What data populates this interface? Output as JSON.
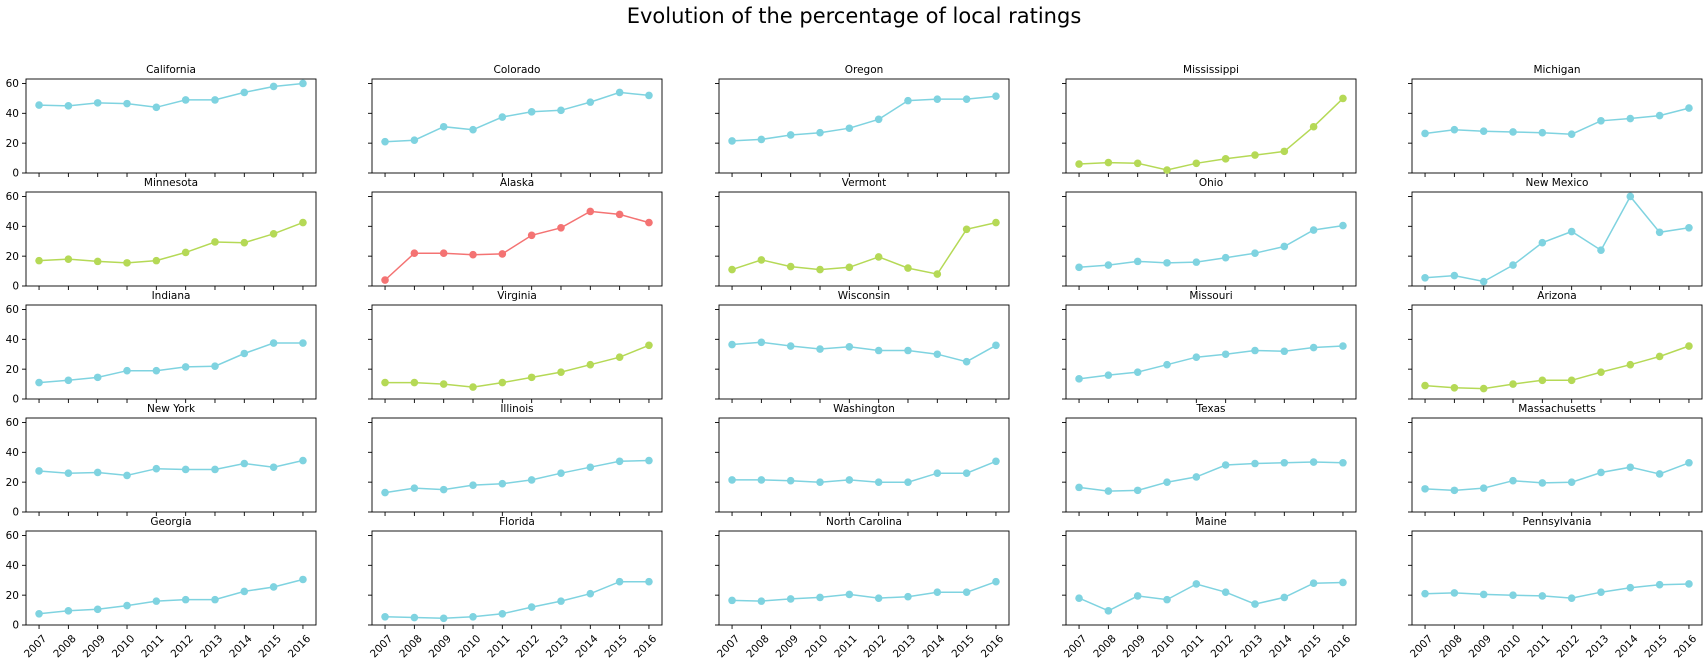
{
  "figure": {
    "title": "Evolution of the percentage of local ratings"
  },
  "chart_data": {
    "type": "line",
    "layout": "small-multiples-5x5",
    "shared_y": true,
    "shared_x": true,
    "ylim": [
      0,
      63
    ],
    "yticks": [
      0,
      20,
      40,
      60
    ],
    "x": [
      2007,
      2008,
      2009,
      2010,
      2011,
      2012,
      2013,
      2014,
      2015,
      2016
    ],
    "xtick_labels": [
      "2007",
      "2008",
      "2009",
      "2010",
      "2011",
      "2012",
      "2013",
      "2014",
      "2015",
      "2016"
    ],
    "grid": false,
    "marker": "circle",
    "colors": {
      "cyan": "#7fd3e0",
      "green": "#b5d956",
      "red": "#f47373"
    },
    "panels": [
      {
        "title": "California",
        "color": "#7fd3e0",
        "values": [
          45.5,
          45,
          47,
          46.5,
          44,
          49,
          49,
          54,
          58,
          60
        ]
      },
      {
        "title": "Colorado",
        "color": "#7fd3e0",
        "values": [
          21,
          22,
          31,
          29,
          37.5,
          41,
          42,
          47.5,
          54,
          52
        ]
      },
      {
        "title": "Oregon",
        "color": "#7fd3e0",
        "values": [
          21.5,
          22.5,
          25.5,
          27,
          30,
          36,
          48.5,
          49.5,
          49.5,
          51.5
        ]
      },
      {
        "title": "Mississippi",
        "color": "#b5d956",
        "values": [
          6,
          7,
          6.5,
          2,
          6.5,
          9.5,
          12,
          14.5,
          31,
          50
        ]
      },
      {
        "title": "Michigan",
        "color": "#7fd3e0",
        "values": [
          26.5,
          29,
          28,
          27.5,
          27,
          26,
          35,
          36.5,
          38.5,
          43.5
        ]
      },
      {
        "title": "Minnesota",
        "color": "#b5d956",
        "values": [
          17,
          18,
          16.5,
          15.5,
          17,
          22.5,
          29.5,
          29,
          35,
          42.5
        ]
      },
      {
        "title": "Alaska",
        "color": "#f47373",
        "values": [
          4,
          22,
          22,
          21,
          21.5,
          34,
          39,
          50,
          48,
          42.5
        ]
      },
      {
        "title": "Vermont",
        "color": "#b5d956",
        "values": [
          11,
          17.5,
          13,
          11,
          12.5,
          19.5,
          12,
          8,
          38,
          42.5
        ]
      },
      {
        "title": "Ohio",
        "color": "#7fd3e0",
        "values": [
          12.5,
          14,
          16.5,
          15.5,
          16,
          19,
          22,
          26.5,
          37.5,
          40.5
        ]
      },
      {
        "title": "New Mexico",
        "color": "#7fd3e0",
        "values": [
          5.5,
          7,
          3,
          14,
          29,
          36.5,
          24,
          60,
          36,
          39
        ]
      },
      {
        "title": "Indiana",
        "color": "#7fd3e0",
        "values": [
          11,
          12.5,
          14.5,
          19,
          19,
          21.5,
          22,
          30.5,
          37.5,
          37.5
        ]
      },
      {
        "title": "Virginia",
        "color": "#b5d956",
        "values": [
          11,
          11,
          10,
          8,
          11,
          14.5,
          18,
          23,
          28,
          36
        ]
      },
      {
        "title": "Wisconsin",
        "color": "#7fd3e0",
        "values": [
          36.5,
          38,
          35.5,
          33.5,
          35,
          32.5,
          32.5,
          30,
          25,
          36
        ]
      },
      {
        "title": "Missouri",
        "color": "#7fd3e0",
        "values": [
          13.5,
          16,
          18,
          23,
          28,
          30,
          32.5,
          32,
          34.5,
          35.5
        ]
      },
      {
        "title": "Arizona",
        "color": "#b5d956",
        "values": [
          9,
          7.5,
          7,
          10,
          12.5,
          12.5,
          18,
          23,
          28.5,
          35.5
        ]
      },
      {
        "title": "New York",
        "color": "#7fd3e0",
        "values": [
          27.5,
          26,
          26.5,
          24.5,
          29,
          28.5,
          28.5,
          32.5,
          30,
          34.5
        ]
      },
      {
        "title": "Illinois",
        "color": "#7fd3e0",
        "values": [
          13,
          16,
          15,
          18,
          19,
          21.5,
          26,
          30,
          34,
          34.5
        ]
      },
      {
        "title": "Washington",
        "color": "#7fd3e0",
        "values": [
          21.5,
          21.5,
          21,
          20,
          21.5,
          20,
          20,
          26,
          26,
          34
        ]
      },
      {
        "title": "Texas",
        "color": "#7fd3e0",
        "values": [
          16.5,
          14,
          14.5,
          20,
          23.5,
          31.5,
          32.5,
          33,
          33.5,
          33
        ]
      },
      {
        "title": "Massachusetts",
        "color": "#7fd3e0",
        "values": [
          15.5,
          14.5,
          16,
          21,
          19.5,
          20,
          26.5,
          30,
          25.5,
          33
        ]
      },
      {
        "title": "Georgia",
        "color": "#7fd3e0",
        "values": [
          7.5,
          9.5,
          10.5,
          13,
          16,
          17,
          17,
          22.5,
          25.5,
          30.5
        ]
      },
      {
        "title": "Florida",
        "color": "#7fd3e0",
        "values": [
          5.5,
          5,
          4.5,
          5.5,
          7.5,
          12,
          16,
          21,
          29,
          29
        ]
      },
      {
        "title": "North Carolina",
        "color": "#7fd3e0",
        "values": [
          16.5,
          16,
          17.5,
          18.5,
          20.5,
          18,
          19,
          22,
          22,
          29
        ]
      },
      {
        "title": "Maine",
        "color": "#7fd3e0",
        "values": [
          18,
          9.5,
          19.5,
          17,
          27.5,
          22,
          14,
          18.5,
          28,
          28.5
        ]
      },
      {
        "title": "Pennsylvania",
        "color": "#7fd3e0",
        "values": [
          21,
          21.5,
          20.5,
          20,
          19.5,
          18,
          22,
          25,
          27,
          27.5
        ]
      }
    ]
  }
}
